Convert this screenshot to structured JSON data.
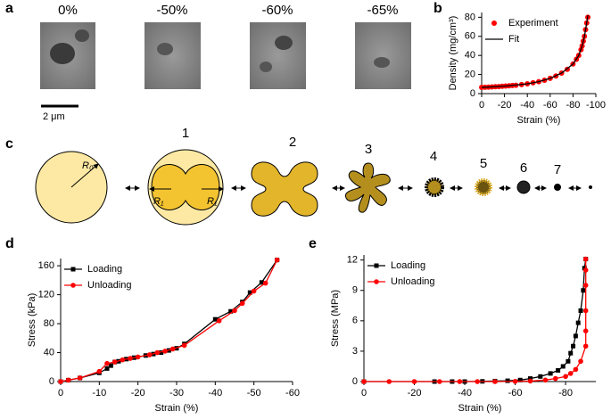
{
  "panels": [
    "a",
    "b",
    "c",
    "d",
    "e"
  ],
  "sem": {
    "strain_labels": [
      "0%",
      "-50%",
      "-60%",
      "-65%"
    ],
    "scale_bar": "2 μm"
  },
  "diagram": {
    "radius_labels": [
      "R₀",
      "R₁",
      "R₁"
    ],
    "stage_labels": [
      "1",
      "2",
      "3",
      "4",
      "5",
      "6",
      "7"
    ]
  },
  "chart_data": [
    {
      "type": "line",
      "xlabel": "Strain (%)",
      "ylabel": "Density (mg/cm³)",
      "xlim": [
        0,
        -100
      ],
      "xticks": [
        0,
        -20,
        -40,
        -60,
        -80,
        -100
      ],
      "ylim": [
        0,
        85
      ],
      "yticks": [
        0,
        20,
        40,
        60,
        80
      ],
      "legend": "upper left",
      "series": [
        {
          "name": "Experiment",
          "color": "#ff0000",
          "style": "markers",
          "x": [
            0,
            -3,
            -6,
            -9,
            -12,
            -15,
            -18,
            -21,
            -24,
            -27,
            -30,
            -35,
            -40,
            -45,
            -50,
            -55,
            -60,
            -65,
            -70,
            -75,
            -80,
            -83,
            -85,
            -87,
            -88,
            -89,
            -90,
            -91,
            -92,
            -93
          ],
          "values": [
            6.5,
            6.6,
            6.8,
            7,
            7.2,
            7.4,
            7.7,
            7.9,
            8.2,
            8.5,
            8.8,
            9.5,
            10.3,
            11.3,
            12.5,
            14,
            16,
            18.5,
            21.5,
            25.5,
            31,
            36,
            40,
            46,
            50,
            55,
            60,
            67,
            74,
            80
          ]
        },
        {
          "name": "Fit",
          "color": "#000000",
          "style": "line",
          "x": [
            0,
            -20,
            -40,
            -50,
            -60,
            -70,
            -80,
            -85,
            -88,
            -90,
            -92,
            -93
          ],
          "values": [
            6.5,
            7.8,
            10.3,
            12.5,
            16,
            21.5,
            31,
            40,
            50,
            60,
            74,
            82
          ]
        }
      ]
    },
    {
      "type": "line",
      "xlabel": "Strain (%)",
      "ylabel": "Stress (kPa)",
      "xlim": [
        0,
        -60
      ],
      "xticks": [
        0,
        -10,
        -20,
        -30,
        -40,
        -50,
        -60
      ],
      "ylim": [
        0,
        170
      ],
      "yticks": [
        0,
        40,
        80,
        120,
        160
      ],
      "legend": "upper left",
      "series": [
        {
          "name": "Loading",
          "color": "#000000",
          "style": "line-markers",
          "marker": "square",
          "x": [
            0,
            -2,
            -5,
            -10,
            -12,
            -13,
            -14,
            -15,
            -17,
            -19,
            -22,
            -24,
            -26,
            -28,
            -30,
            -32,
            -40,
            -44,
            -47,
            -49,
            -52,
            -56
          ],
          "values": [
            0,
            2,
            5,
            12,
            18,
            22,
            27,
            28,
            31,
            33,
            36,
            38,
            40,
            43,
            46,
            52,
            86,
            97,
            110,
            123,
            137,
            168
          ]
        },
        {
          "name": "Unloading",
          "color": "#ff0000",
          "style": "line-markers",
          "marker": "circle",
          "x": [
            -56,
            -53,
            -50,
            -47,
            -45,
            -41,
            -32,
            -29,
            -27,
            -25,
            -23,
            -20,
            -18,
            -16,
            -14,
            -12,
            -10,
            -5,
            -2,
            0
          ],
          "values": [
            168,
            136,
            125,
            108,
            98,
            84,
            50,
            45,
            42,
            40,
            37,
            34,
            32,
            30,
            27,
            25,
            14,
            5,
            2,
            0
          ]
        }
      ]
    },
    {
      "type": "line",
      "xlabel": "Strain (%)",
      "ylabel": "Stress (MPa)",
      "xlim": [
        0,
        -92
      ],
      "xticks": [
        0,
        -20,
        -40,
        -60,
        -80
      ],
      "ylim": [
        0,
        12.5
      ],
      "yticks": [
        0,
        3,
        6,
        9,
        12
      ],
      "legend": "upper left",
      "series": [
        {
          "name": "Loading",
          "color": "#000000",
          "style": "line-markers",
          "marker": "square",
          "x": [
            0,
            -28,
            -35,
            -40,
            -47,
            -52,
            -57,
            -62,
            -66,
            -70,
            -74,
            -77,
            -79,
            -81,
            -82,
            -83,
            -84,
            -85,
            -86,
            -87,
            -87.5,
            -88
          ],
          "values": [
            0,
            0,
            0,
            0,
            0.02,
            0.05,
            0.08,
            0.15,
            0.3,
            0.5,
            0.8,
            1.1,
            1.5,
            2,
            2.8,
            3.5,
            4.5,
            5.8,
            7,
            9,
            11.2,
            12.1
          ]
        },
        {
          "name": "Unloading",
          "color": "#ff0000",
          "style": "line-markers",
          "marker": "circle",
          "x": [
            -88,
            -88,
            -88,
            -88,
            -88,
            -88,
            -86,
            -84,
            -82,
            -80,
            -76,
            -72,
            -66,
            -60,
            -52,
            -45,
            -38,
            -30,
            -20,
            -10,
            0
          ],
          "values": [
            12.1,
            11,
            9.5,
            7,
            5,
            3.5,
            2,
            1.2,
            0.8,
            0.5,
            0.3,
            0.15,
            0.05,
            0.02,
            0,
            0,
            0,
            0,
            0,
            0,
            0
          ]
        }
      ]
    }
  ]
}
